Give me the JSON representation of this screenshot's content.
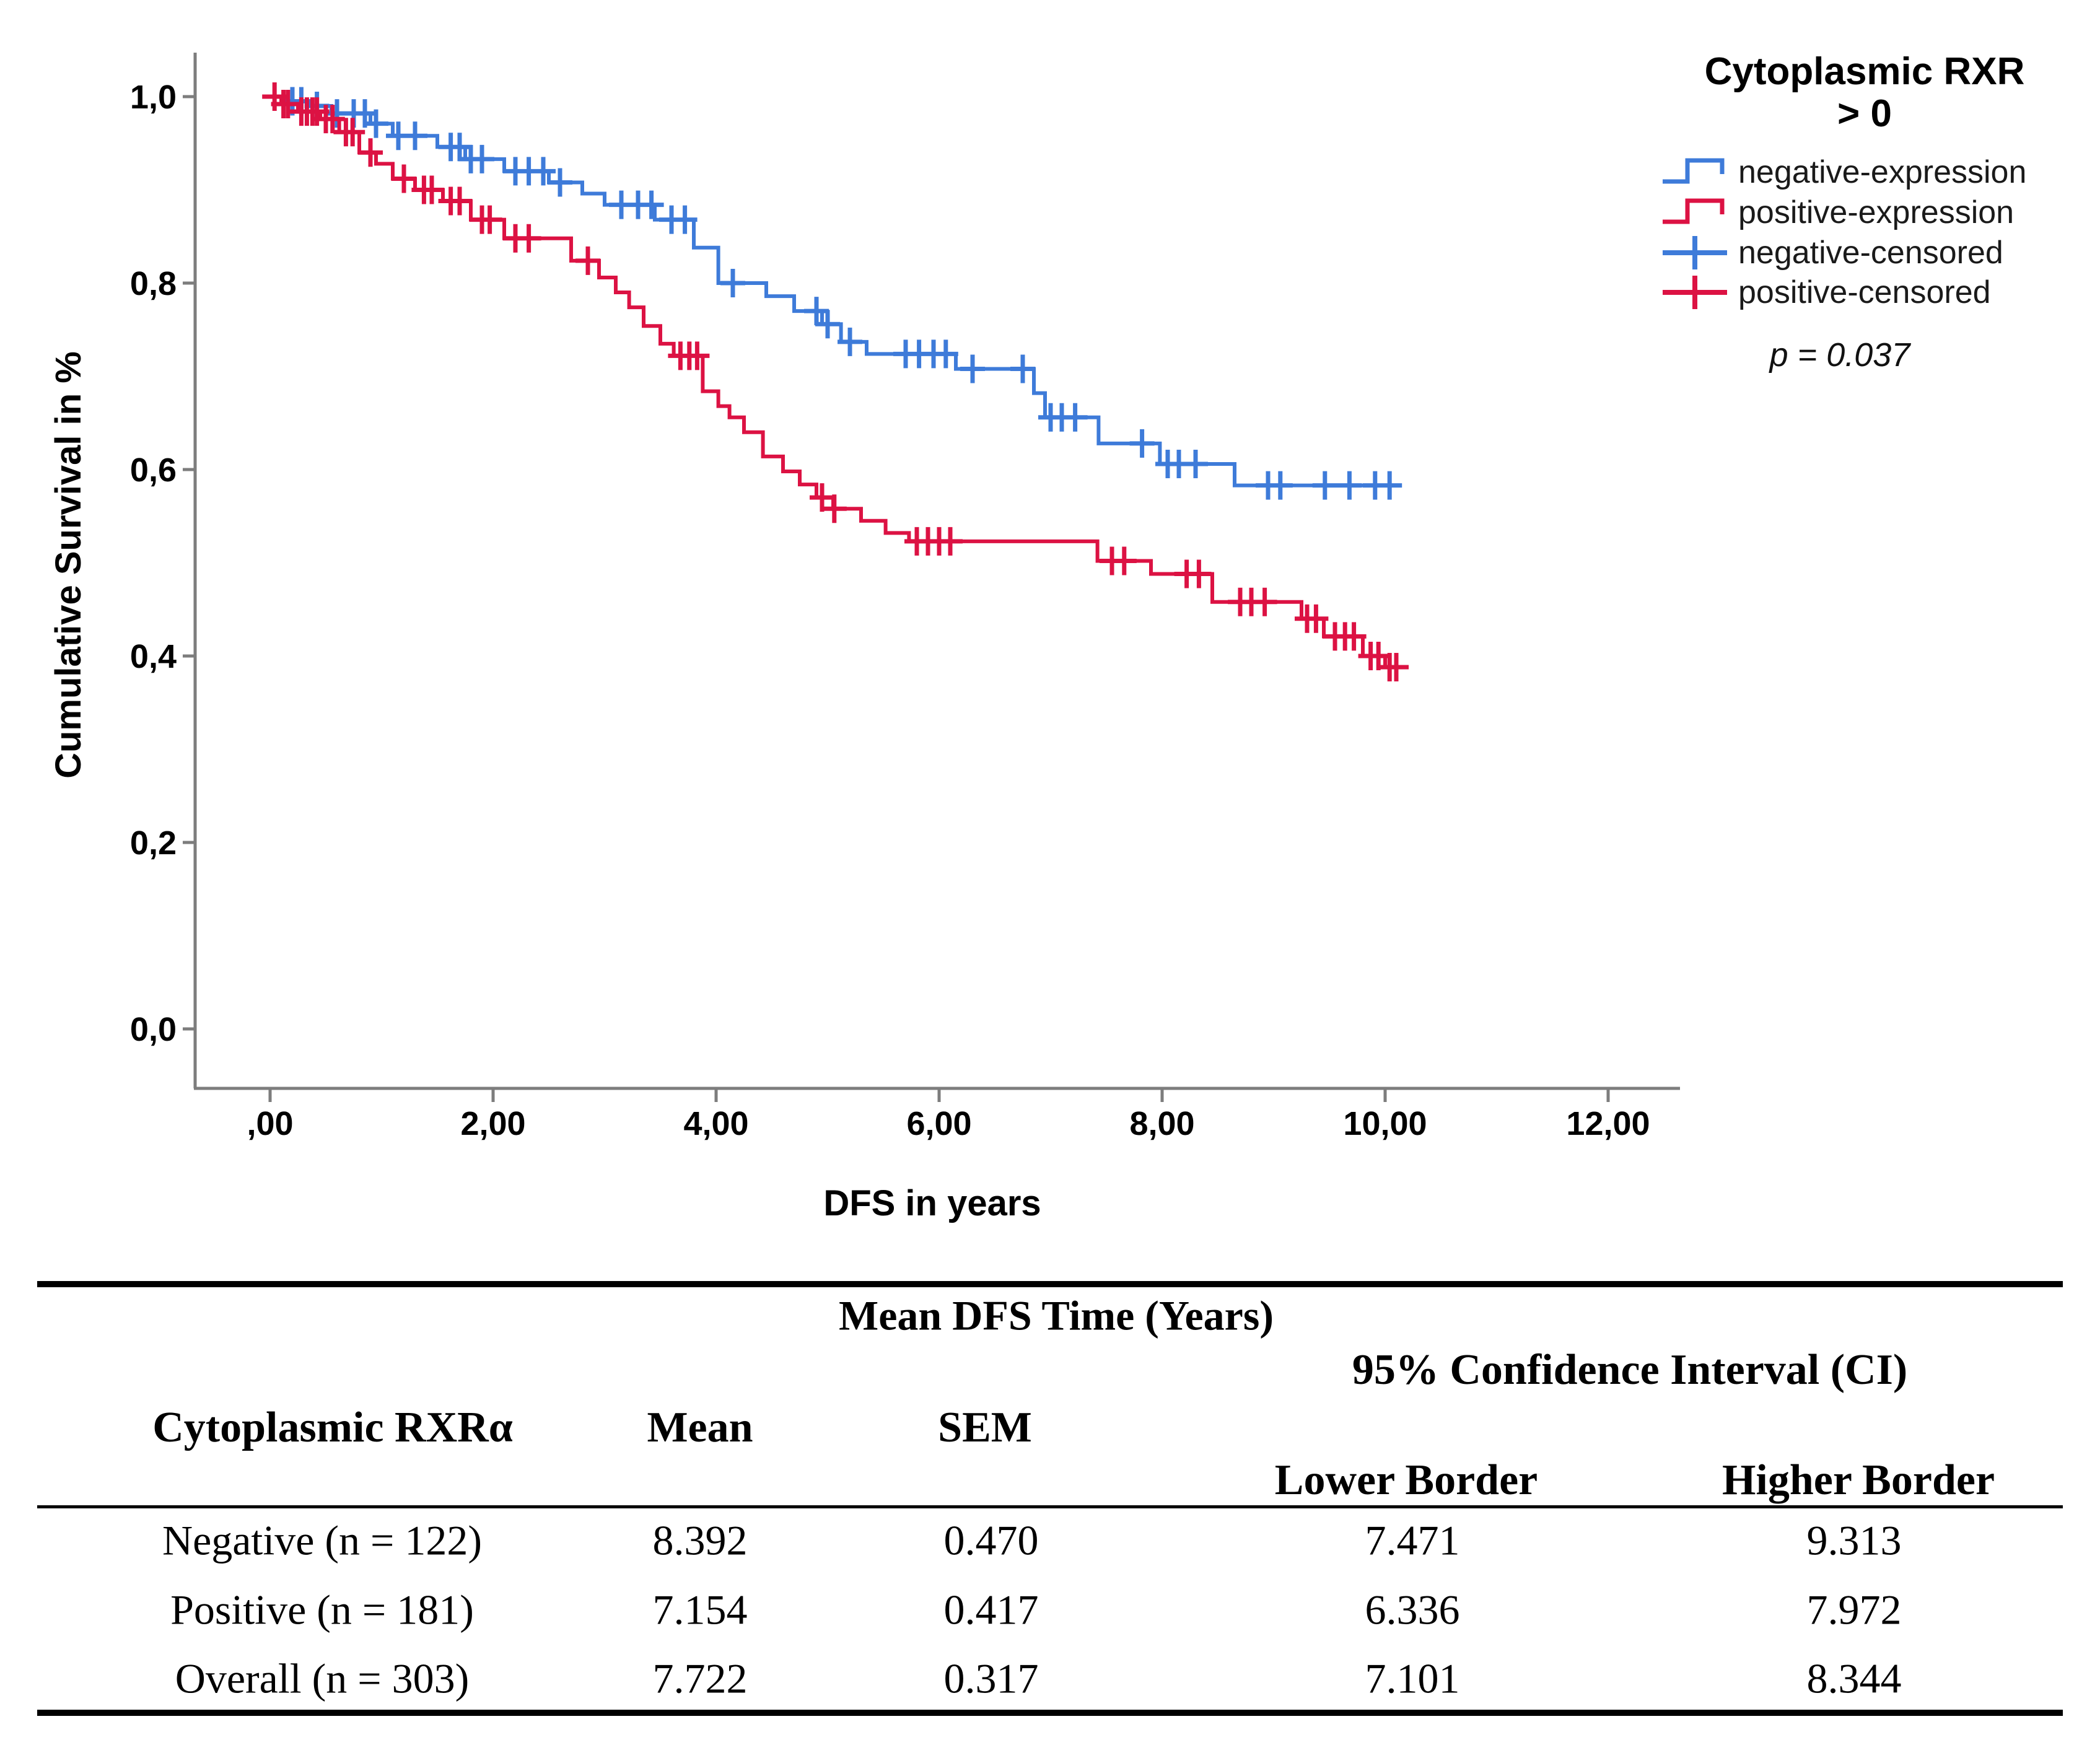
{
  "chart": {
    "y_axis": {
      "title": "Cumulative Survival in %",
      "ticks": [
        "1,0",
        "0,8",
        "0,6",
        "0,4",
        "0,2",
        "0,0"
      ]
    },
    "x_axis": {
      "title": "DFS in years",
      "ticks": [
        ",00",
        "2,00",
        "4,00",
        "6,00",
        "8,00",
        "10,00",
        "12,00"
      ]
    },
    "legend": {
      "title_line1": "Cytoplasmic RXR",
      "title_line2": "> 0",
      "entries": [
        {
          "label": "negative-expression",
          "symbol": "step",
          "series": "negative"
        },
        {
          "label": "positive-expression",
          "symbol": "step",
          "series": "positive"
        },
        {
          "label": "negative-censored",
          "symbol": "plus",
          "series": "negative"
        },
        {
          "label": "positive-censored",
          "symbol": "plus",
          "series": "positive"
        }
      ],
      "p_value": "p = 0.037"
    },
    "colors": {
      "negative": "#3E7BD9",
      "positive": "#DC1243",
      "axis": "#7d7d7d"
    }
  },
  "chart_data": {
    "type": "line",
    "subtype": "kaplan-meier-step",
    "title": "",
    "xlabel": "DFS in years",
    "ylabel": "Cumulative Survival in %",
    "xlim": [
      0,
      12.6
    ],
    "ylim": [
      0,
      1.05
    ],
    "grid": false,
    "legend_position": "right-top",
    "p_value": 0.037,
    "series": [
      {
        "name": "negative-expression",
        "key": "negative",
        "color": "#3E7BD9",
        "end": 10.1,
        "steps": [
          [
            0.0,
            1.0
          ],
          [
            0.15,
            0.995
          ],
          [
            0.35,
            0.99
          ],
          [
            0.55,
            0.982
          ],
          [
            0.9,
            0.971
          ],
          [
            1.1,
            0.958
          ],
          [
            1.5,
            0.946
          ],
          [
            1.75,
            0.933
          ],
          [
            2.1,
            0.92
          ],
          [
            2.5,
            0.908
          ],
          [
            2.8,
            0.896
          ],
          [
            3.0,
            0.884
          ],
          [
            3.45,
            0.868
          ],
          [
            3.8,
            0.838
          ],
          [
            4.02,
            0.8
          ],
          [
            4.45,
            0.786
          ],
          [
            4.7,
            0.77
          ],
          [
            4.95,
            0.756
          ],
          [
            5.12,
            0.737
          ],
          [
            5.35,
            0.724
          ],
          [
            6.15,
            0.708
          ],
          [
            6.85,
            0.682
          ],
          [
            6.95,
            0.656
          ],
          [
            7.43,
            0.628
          ],
          [
            7.98,
            0.606
          ],
          [
            8.65,
            0.583
          ]
        ],
        "censored": [
          [
            0.2,
            0.995
          ],
          [
            0.28,
            0.995
          ],
          [
            0.42,
            0.99
          ],
          [
            0.6,
            0.982
          ],
          [
            0.75,
            0.982
          ],
          [
            0.85,
            0.982
          ],
          [
            0.95,
            0.971
          ],
          [
            1.15,
            0.958
          ],
          [
            1.3,
            0.958
          ],
          [
            1.62,
            0.946
          ],
          [
            1.7,
            0.946
          ],
          [
            1.8,
            0.933
          ],
          [
            1.9,
            0.933
          ],
          [
            2.2,
            0.92
          ],
          [
            2.32,
            0.92
          ],
          [
            2.45,
            0.92
          ],
          [
            2.6,
            0.908
          ],
          [
            3.15,
            0.884
          ],
          [
            3.3,
            0.884
          ],
          [
            3.42,
            0.884
          ],
          [
            3.6,
            0.868
          ],
          [
            3.72,
            0.868
          ],
          [
            4.15,
            0.8
          ],
          [
            4.9,
            0.77
          ],
          [
            5.0,
            0.756
          ],
          [
            5.2,
            0.737
          ],
          [
            5.7,
            0.724
          ],
          [
            5.82,
            0.724
          ],
          [
            5.95,
            0.724
          ],
          [
            6.06,
            0.724
          ],
          [
            6.3,
            0.708
          ],
          [
            6.75,
            0.708
          ],
          [
            7.0,
            0.656
          ],
          [
            7.1,
            0.656
          ],
          [
            7.22,
            0.656
          ],
          [
            7.82,
            0.628
          ],
          [
            8.05,
            0.606
          ],
          [
            8.15,
            0.606
          ],
          [
            8.3,
            0.606
          ],
          [
            8.95,
            0.583
          ],
          [
            9.06,
            0.583
          ],
          [
            9.46,
            0.583
          ],
          [
            9.68,
            0.583
          ],
          [
            9.91,
            0.583
          ],
          [
            10.04,
            0.583
          ]
        ]
      },
      {
        "name": "positive-expression",
        "key": "positive",
        "color": "#DC1243",
        "end": 10.12,
        "steps": [
          [
            0.0,
            1.0
          ],
          [
            0.1,
            0.992
          ],
          [
            0.25,
            0.984
          ],
          [
            0.45,
            0.976
          ],
          [
            0.62,
            0.962
          ],
          [
            0.8,
            0.94
          ],
          [
            0.95,
            0.928
          ],
          [
            1.1,
            0.912
          ],
          [
            1.3,
            0.9
          ],
          [
            1.55,
            0.888
          ],
          [
            1.8,
            0.868
          ],
          [
            2.1,
            0.848
          ],
          [
            2.7,
            0.824
          ],
          [
            2.95,
            0.806
          ],
          [
            3.1,
            0.79
          ],
          [
            3.22,
            0.774
          ],
          [
            3.35,
            0.754
          ],
          [
            3.5,
            0.735
          ],
          [
            3.62,
            0.722
          ],
          [
            3.88,
            0.684
          ],
          [
            4.02,
            0.668
          ],
          [
            4.12,
            0.656
          ],
          [
            4.25,
            0.64
          ],
          [
            4.42,
            0.614
          ],
          [
            4.6,
            0.598
          ],
          [
            4.75,
            0.584
          ],
          [
            4.9,
            0.57
          ],
          [
            5.05,
            0.558
          ],
          [
            5.3,
            0.545
          ],
          [
            5.52,
            0.532
          ],
          [
            5.73,
            0.523
          ],
          [
            7.42,
            0.502
          ],
          [
            7.9,
            0.488
          ],
          [
            8.45,
            0.458
          ],
          [
            9.25,
            0.44
          ],
          [
            9.45,
            0.421
          ],
          [
            9.8,
            0.4
          ],
          [
            10.0,
            0.388
          ]
        ],
        "censored": [
          [
            0.04,
            1.0
          ],
          [
            0.12,
            0.992
          ],
          [
            0.16,
            0.992
          ],
          [
            0.28,
            0.984
          ],
          [
            0.33,
            0.984
          ],
          [
            0.38,
            0.984
          ],
          [
            0.42,
            0.984
          ],
          [
            0.5,
            0.976
          ],
          [
            0.56,
            0.976
          ],
          [
            0.68,
            0.962
          ],
          [
            0.74,
            0.962
          ],
          [
            0.9,
            0.94
          ],
          [
            1.2,
            0.912
          ],
          [
            1.38,
            0.9
          ],
          [
            1.45,
            0.9
          ],
          [
            1.62,
            0.888
          ],
          [
            1.7,
            0.888
          ],
          [
            1.9,
            0.868
          ],
          [
            1.97,
            0.868
          ],
          [
            2.2,
            0.848
          ],
          [
            2.32,
            0.848
          ],
          [
            2.85,
            0.824
          ],
          [
            3.68,
            0.722
          ],
          [
            3.76,
            0.722
          ],
          [
            3.83,
            0.722
          ],
          [
            4.95,
            0.57
          ],
          [
            5.06,
            0.558
          ],
          [
            5.8,
            0.523
          ],
          [
            5.9,
            0.523
          ],
          [
            6.0,
            0.523
          ],
          [
            6.1,
            0.523
          ],
          [
            7.55,
            0.502
          ],
          [
            7.66,
            0.502
          ],
          [
            8.22,
            0.488
          ],
          [
            8.33,
            0.488
          ],
          [
            8.7,
            0.458
          ],
          [
            8.8,
            0.458
          ],
          [
            8.92,
            0.458
          ],
          [
            9.3,
            0.44
          ],
          [
            9.38,
            0.44
          ],
          [
            9.55,
            0.421
          ],
          [
            9.64,
            0.421
          ],
          [
            9.72,
            0.421
          ],
          [
            9.87,
            0.4
          ],
          [
            9.94,
            0.4
          ],
          [
            10.04,
            0.388
          ],
          [
            10.1,
            0.388
          ]
        ]
      }
    ]
  },
  "table": {
    "title": "Mean DFS Time (Years)",
    "ci_header": "95% Confidence Interval (CI)",
    "columns": {
      "group": "Cytoplasmic RXRα",
      "mean": "Mean",
      "sem": "SEM",
      "lower": "Lower Border",
      "higher": "Higher Border"
    },
    "rows": [
      {
        "group": "Negative (n = 122)",
        "mean": "8.392",
        "sem": "0.470",
        "lower": "7.471",
        "higher": "9.313"
      },
      {
        "group": "Positive (n = 181)",
        "mean": "7.154",
        "sem": "0.417",
        "lower": "6.336",
        "higher": "7.972"
      },
      {
        "group": "Overall (n = 303)",
        "mean": "7.722",
        "sem": "0.317",
        "lower": "7.101",
        "higher": "8.344"
      }
    ]
  }
}
